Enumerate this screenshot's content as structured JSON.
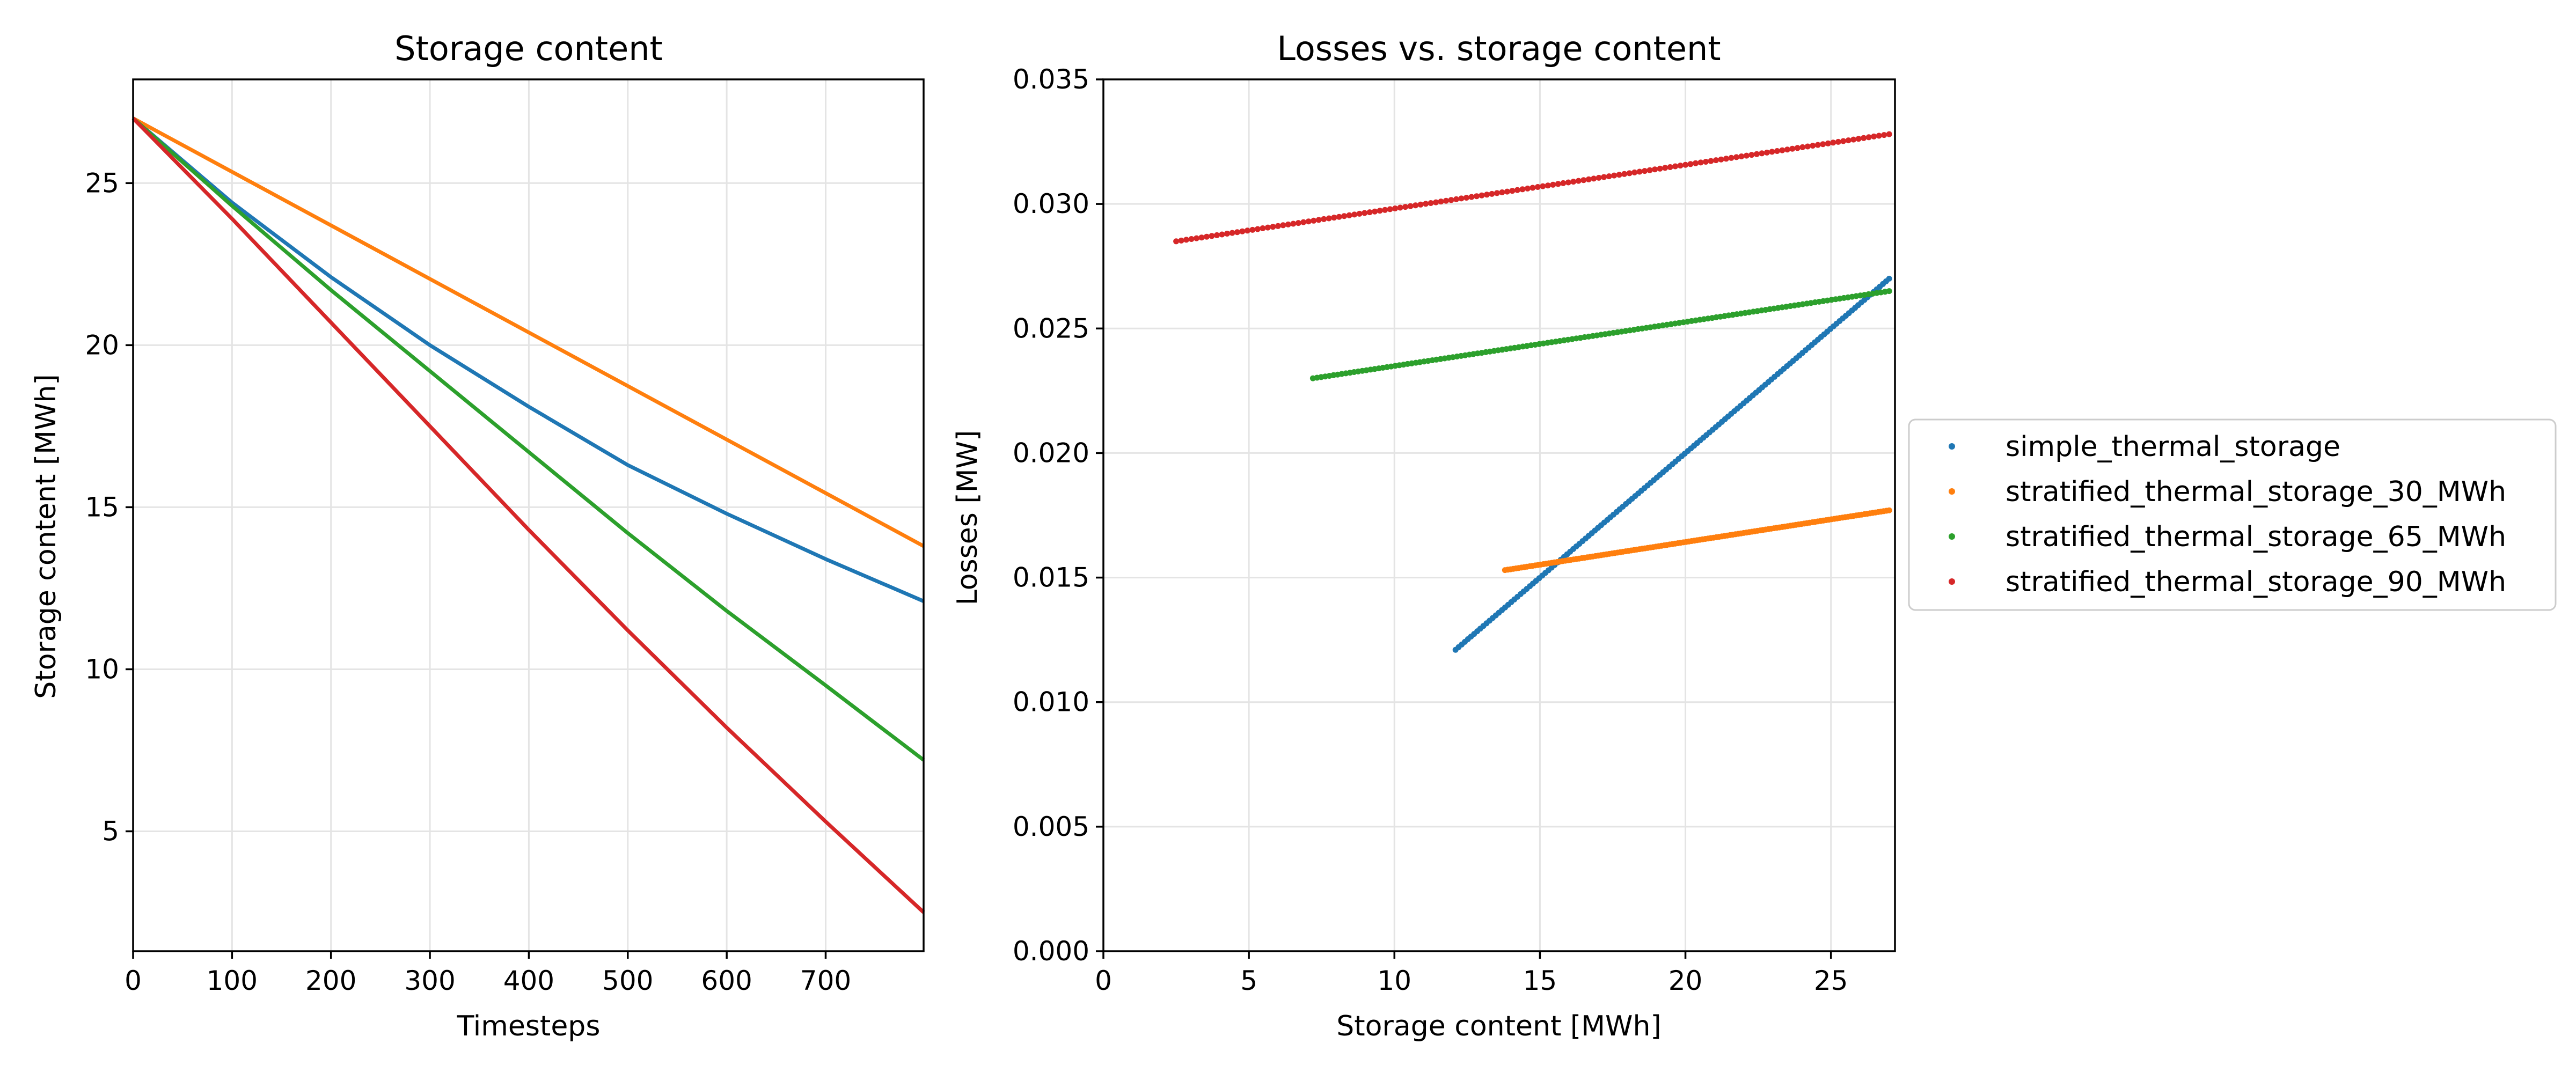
{
  "chart_data": [
    {
      "type": "line",
      "title": "Storage content",
      "xlabel": "Timesteps",
      "ylabel": "Storage content [MWh]",
      "xlim": [
        0,
        799
      ],
      "ylim": [
        1.3,
        28.2
      ],
      "xticks": [
        0,
        100,
        200,
        300,
        400,
        500,
        600,
        700
      ],
      "yticks": [
        5,
        10,
        15,
        20,
        25
      ],
      "grid": true,
      "series": [
        {
          "name": "simple_thermal_storage",
          "color": "#1f77b4",
          "x": [
            0,
            100,
            200,
            300,
            400,
            500,
            600,
            700,
            799
          ],
          "values": [
            27.0,
            24.4,
            22.1,
            20.0,
            18.1,
            16.3,
            14.8,
            13.4,
            12.1
          ]
        },
        {
          "name": "stratified_thermal_storage_30_MWh",
          "color": "#ff7f0e",
          "x": [
            0,
            799
          ],
          "values": [
            27.0,
            13.8
          ]
        },
        {
          "name": "stratified_thermal_storage_65_MWh",
          "color": "#2ca02c",
          "x": [
            0,
            100,
            200,
            300,
            400,
            500,
            600,
            700,
            799
          ],
          "values": [
            27.0,
            24.3,
            21.7,
            19.2,
            16.7,
            14.2,
            11.8,
            9.5,
            7.2
          ]
        },
        {
          "name": "stratified_thermal_storage_90_MWh",
          "color": "#d62728",
          "x": [
            0,
            100,
            200,
            300,
            400,
            500,
            600,
            700,
            799
          ],
          "values": [
            27.0,
            23.9,
            20.7,
            17.5,
            14.3,
            11.2,
            8.2,
            5.3,
            2.5
          ]
        }
      ]
    },
    {
      "type": "scatter",
      "title": "Losses vs. storage content",
      "xlabel": "Storage content [MWh]",
      "ylabel": "Losses [MW]",
      "xlim": [
        0,
        27.2
      ],
      "ylim": [
        0.0,
        0.035
      ],
      "xticks": [
        0,
        5,
        10,
        15,
        20,
        25
      ],
      "yticks": [
        0.0,
        0.005,
        0.01,
        0.015,
        0.02,
        0.025,
        0.03,
        0.035
      ],
      "ytick_labels": [
        "0.000",
        "0.005",
        "0.010",
        "0.015",
        "0.020",
        "0.025",
        "0.030",
        "0.035"
      ],
      "grid": true,
      "legend_position": "outside right",
      "series": [
        {
          "name": "simple_thermal_storage",
          "color": "#1f77b4",
          "x": [
            12.1,
            27.0
          ],
          "values": [
            0.0121,
            0.027
          ]
        },
        {
          "name": "stratified_thermal_storage_30_MWh",
          "color": "#ff7f0e",
          "x": [
            13.8,
            27.0
          ],
          "values": [
            0.0153,
            0.0177
          ]
        },
        {
          "name": "stratified_thermal_storage_65_MWh",
          "color": "#2ca02c",
          "x": [
            7.2,
            27.0
          ],
          "values": [
            0.023,
            0.0265
          ]
        },
        {
          "name": "stratified_thermal_storage_90_MWh",
          "color": "#d62728",
          "x": [
            2.5,
            27.0
          ],
          "values": [
            0.0285,
            0.0328
          ]
        }
      ]
    }
  ],
  "legend": {
    "items": [
      {
        "label": "simple_thermal_storage",
        "color": "#1f77b4"
      },
      {
        "label": "stratified_thermal_storage_30_MWh",
        "color": "#ff7f0e"
      },
      {
        "label": "stratified_thermal_storage_65_MWh",
        "color": "#2ca02c"
      },
      {
        "label": "stratified_thermal_storage_90_MWh",
        "color": "#d62728"
      }
    ]
  }
}
